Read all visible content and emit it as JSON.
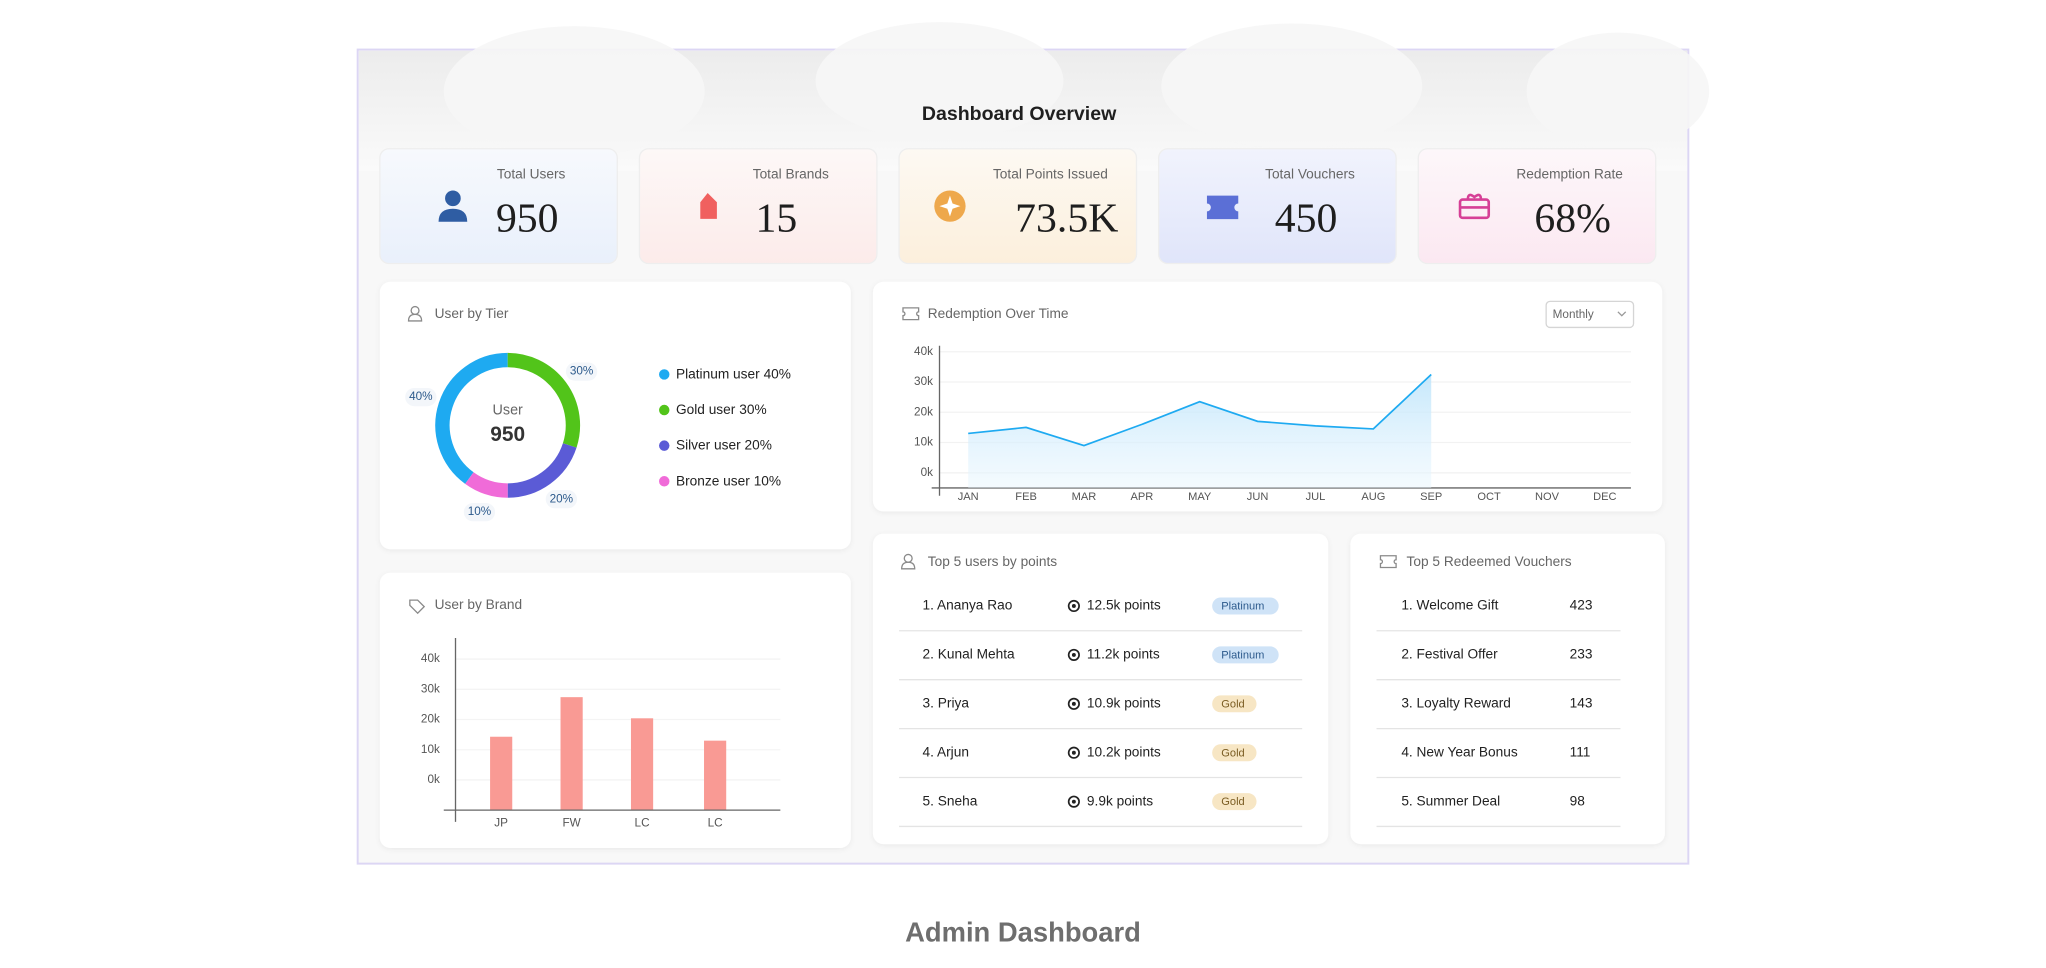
{
  "header": {
    "title": "Dashboard Overview"
  },
  "stats": [
    {
      "label": "Total Users",
      "value": "950"
    },
    {
      "label": "Total Brands",
      "value": "15"
    },
    {
      "label": "Total Points Issued",
      "value": "73.5K"
    },
    {
      "label": "Total Vouchers",
      "value": "450"
    },
    {
      "label": "Redemption Rate",
      "value": "68%"
    }
  ],
  "chart_data": [
    {
      "type": "pie",
      "title": "User by Tier",
      "center_label": "User",
      "center_value": "950",
      "categories": [
        "Platinum user",
        "Gold user",
        "Silver user",
        "Bronze user"
      ],
      "values": [
        40,
        30,
        20,
        10
      ],
      "value_labels": [
        "40%",
        "30%",
        "20%",
        "10%"
      ],
      "colors": [
        "#1eaaf1",
        "#52c41a",
        "#5b5bd6",
        "#f06bd8"
      ],
      "legend": "right"
    },
    {
      "type": "line",
      "title": "Redemption Over Time",
      "period": "Monthly",
      "categories": [
        "JAN",
        "FEB",
        "MAR",
        "APR",
        "MAY",
        "JUN",
        "JUL",
        "AUG",
        "SEP",
        "OCT",
        "NOV",
        "DEC"
      ],
      "values": [
        13000,
        15000,
        9000,
        16000,
        23500,
        17000,
        15500,
        14500,
        32500,
        null,
        null,
        null
      ],
      "color": "#1eaaf1",
      "ylim": [
        -5000,
        42000
      ],
      "grid": true,
      "yticks": [
        {
          "value": 0,
          "label": "0k"
        },
        {
          "value": 10000,
          "label": "10k"
        },
        {
          "value": 20000,
          "label": "20k"
        },
        {
          "value": 30000,
          "label": "30k"
        },
        {
          "value": 40000,
          "label": "40k"
        }
      ]
    },
    {
      "type": "bar",
      "title": "User by Brand",
      "categories": [
        "JP",
        "FW",
        "LC",
        "LC"
      ],
      "values": [
        14300,
        27400,
        20400,
        13000
      ],
      "color": "#f99a94",
      "ylim": [
        -10000,
        47000
      ],
      "grid": true,
      "yticks": [
        {
          "value": 0,
          "label": "0k"
        },
        {
          "value": 10000,
          "label": "10k"
        },
        {
          "value": 20000,
          "label": "20k"
        },
        {
          "value": 30000,
          "label": "30k"
        },
        {
          "value": 40000,
          "label": "40k"
        }
      ]
    }
  ],
  "top_users": {
    "title": "Top 5 users by points",
    "rows": [
      [
        "1. Ananya Rao",
        "12.5k points",
        "Platinum"
      ],
      [
        "2. Kunal Mehta",
        "11.2k points",
        "Platinum"
      ],
      [
        "3. Priya",
        "10.9k points",
        "Gold"
      ],
      [
        "4. Arjun",
        "10.2k points",
        "Gold"
      ],
      [
        "5. Sneha",
        "9.9k points",
        "Gold"
      ]
    ]
  },
  "top_vouchers": {
    "title": "Top 5 Redeemed Vouchers",
    "rows": [
      [
        "1. Welcome Gift",
        423
      ],
      [
        "2. Festival Offer",
        233
      ],
      [
        "3. Loyalty Reward",
        143
      ],
      [
        "4. New Year Bonus",
        111
      ],
      [
        "5. Summer Deal",
        98
      ]
    ]
  },
  "caption": "Admin Dashboard"
}
